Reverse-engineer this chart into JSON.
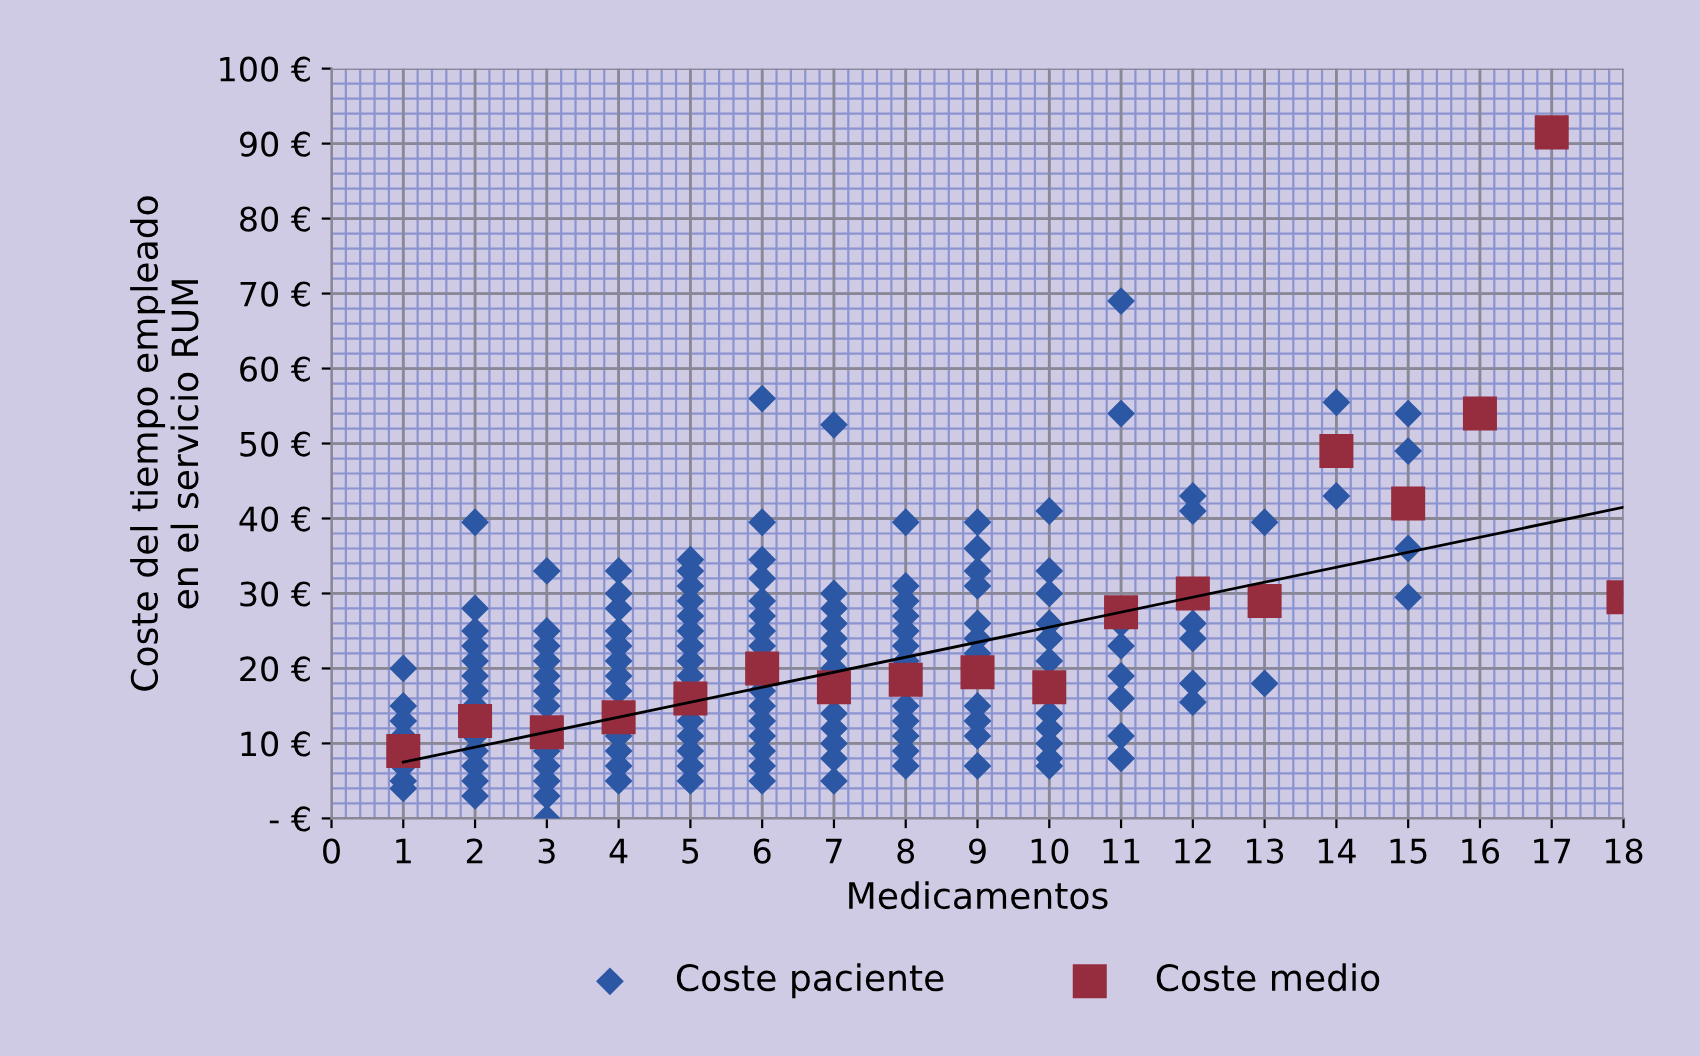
{
  "chart_data": {
    "type": "scatter",
    "xlabel": "Medicamentos",
    "ylabel": "Coste del tiempo empleado\nen el servicio RUM",
    "xlim": [
      0,
      18
    ],
    "xticks": [
      0,
      1,
      2,
      3,
      4,
      5,
      6,
      7,
      8,
      9,
      10,
      11,
      12,
      13,
      14,
      15,
      16,
      17,
      18
    ],
    "ylim": [
      0,
      100
    ],
    "yticks": [
      {
        "value": 0,
        "label": "- €"
      },
      {
        "value": 10,
        "label": "10 €"
      },
      {
        "value": 20,
        "label": "20 €"
      },
      {
        "value": 30,
        "label": "30 €"
      },
      {
        "value": 40,
        "label": "40 €"
      },
      {
        "value": 50,
        "label": "50 €"
      },
      {
        "value": 60,
        "label": "60 €"
      },
      {
        "value": 70,
        "label": "70 €"
      },
      {
        "value": 80,
        "label": "80 €"
      },
      {
        "value": 90,
        "label": "90 €"
      },
      {
        "value": 100,
        "label": "100 €"
      }
    ],
    "grid": true,
    "legend": "bottom",
    "series": [
      {
        "name": "Coste paciente",
        "marker": "diamond",
        "color": "#2b57a5",
        "x": [
          1,
          1,
          1,
          1,
          1,
          1,
          1,
          2,
          2,
          2,
          2,
          2,
          2,
          2,
          2,
          2,
          2,
          2,
          2,
          2,
          3,
          3,
          3,
          3,
          3,
          3,
          3,
          3,
          3,
          3,
          3,
          3,
          4,
          4,
          4,
          4,
          4,
          4,
          4,
          4,
          4,
          4,
          4,
          4,
          5,
          5,
          5,
          5,
          5,
          5,
          5,
          5,
          5,
          5,
          5,
          5,
          5,
          5,
          6,
          6,
          6,
          6,
          6,
          6,
          6,
          6,
          6,
          6,
          6,
          6,
          6,
          6,
          6,
          7,
          7,
          7,
          7,
          7,
          7,
          7,
          7,
          7,
          7,
          7,
          7,
          8,
          8,
          8,
          8,
          8,
          8,
          8,
          8,
          8,
          8,
          8,
          8,
          9,
          9,
          9,
          9,
          9,
          9,
          9,
          9,
          9,
          9,
          9,
          10,
          10,
          10,
          10,
          10,
          10,
          10,
          10,
          10,
          10,
          10,
          11,
          11,
          11,
          11,
          11,
          11,
          11,
          11,
          12,
          12,
          12,
          12,
          12,
          12,
          13,
          13,
          14,
          14,
          15,
          15,
          15,
          15
        ],
        "values": [
          20,
          15,
          13,
          11,
          7,
          5,
          4,
          39.5,
          28,
          25,
          23,
          21,
          19,
          17,
          15,
          11,
          9,
          7,
          5,
          3,
          33,
          25,
          23,
          21,
          19,
          17,
          15,
          9,
          7,
          5,
          3,
          0,
          33,
          30,
          28,
          25,
          23,
          21,
          19,
          17,
          11,
          9,
          7,
          5,
          34.5,
          33,
          31,
          29,
          27,
          25,
          23,
          21,
          19,
          13,
          11,
          9,
          7,
          5,
          56,
          39.5,
          34.5,
          32,
          29,
          27,
          25,
          23,
          17,
          15,
          13,
          11,
          9,
          7,
          5,
          52.5,
          30,
          28,
          26,
          24,
          22,
          20,
          14,
          12,
          10,
          8,
          5,
          39.5,
          31,
          29,
          27,
          25,
          23,
          21,
          15,
          13,
          11,
          9,
          7,
          39.5,
          36,
          33,
          31,
          26,
          24,
          22,
          15,
          13,
          11,
          7,
          41,
          33,
          30,
          26,
          24,
          21,
          14,
          12,
          10,
          8,
          7,
          69,
          54,
          26,
          23,
          19,
          16,
          11,
          8,
          43,
          41,
          26,
          24,
          18,
          15.5,
          39.5,
          18,
          55.5,
          43,
          54,
          49,
          36,
          29.5
        ]
      },
      {
        "name": "Coste medio",
        "marker": "square",
        "color": "#962d3e",
        "x": [
          1,
          2,
          3,
          4,
          5,
          6,
          7,
          8,
          9,
          10,
          11,
          12,
          13,
          14,
          15,
          16,
          17,
          18
        ],
        "values": [
          9,
          13,
          11.5,
          13.5,
          16,
          20,
          17.5,
          18.5,
          19.5,
          17.5,
          27.5,
          30,
          29,
          49,
          42,
          54,
          91.5,
          29.5
        ]
      },
      {
        "type": "line",
        "color": "#000000",
        "x": [
          1,
          18
        ],
        "values": [
          7.5,
          41.5
        ]
      }
    ]
  }
}
